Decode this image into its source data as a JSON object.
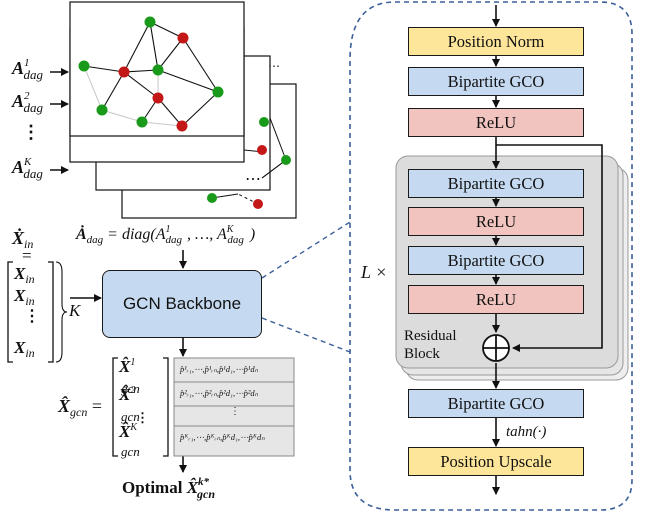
{
  "left": {
    "input_labels": [
      {
        "base": "A",
        "sup": "1",
        "sub": "dag"
      },
      {
        "base": "A",
        "sup": "2",
        "sub": "dag"
      },
      {
        "base": "A",
        "sup": "K",
        "sub": "dag"
      }
    ],
    "vdots": "⋮",
    "diag_eq": {
      "lhs": "Ȧ",
      "lhs_sub": "dag",
      "eq": " = diag(A",
      "a1_sup": "1",
      "a1_sub": "dag",
      "mid": ", …, A",
      "ak_sup": "K",
      "ak_sub": "dag",
      "end": ")"
    },
    "xin_label": {
      "top": "Ẋ",
      "sub": "in",
      "eq": "="
    },
    "matrix_rows": [
      "X",
      "X",
      "⋮",
      "X"
    ],
    "matrix_row_sub": "in",
    "k_label": "K",
    "backbone_label": "GCN Backbone",
    "xgcn_label": {
      "base": "X̂",
      "sub": "gcn",
      "eq": "="
    },
    "gcn_rows": [
      {
        "base": "X̂",
        "sup": "1",
        "sub": "gcn"
      },
      {
        "base": "X̂",
        "sup": "2",
        "sub": "gcn"
      },
      {
        "base": "X̂",
        "sup": "K",
        "sub": "gcn"
      }
    ],
    "feature_rows": [
      "p̂¹ᵣ₁,⋯,p̂¹ᵣₙ,p̂¹d₁,⋯p̂¹dₙ",
      "p̂²ᵣ₁,⋯,p̂²ᵣₙ,p̂²d₁,⋯p̂²dₙ",
      "⋮",
      "p̂ᴷᵣ₁,⋯,p̂ᴷᵣₙ,p̂ᴷd₁,⋯p̂ᴷdₙ"
    ],
    "optimal": {
      "text": "Optimal ",
      "base": "X̂",
      "sup": "k*",
      "sub": "gcn"
    }
  },
  "right": {
    "position_norm": "Position Norm",
    "bipartite_gco": "Bipartite GCO",
    "relu": "ReLU",
    "residual_block_label": "Residual Block",
    "repeat_label": "L ×",
    "tahn_label": "tahn(·)",
    "position_upscale": "Position Upscale"
  },
  "colors": {
    "yellow": "#fde69a",
    "blue": "#c5daf0",
    "red": "#f2c4c0",
    "green_node": "#1a9a1a",
    "red_node": "#c41818",
    "dashed": "#3a5f9a"
  }
}
